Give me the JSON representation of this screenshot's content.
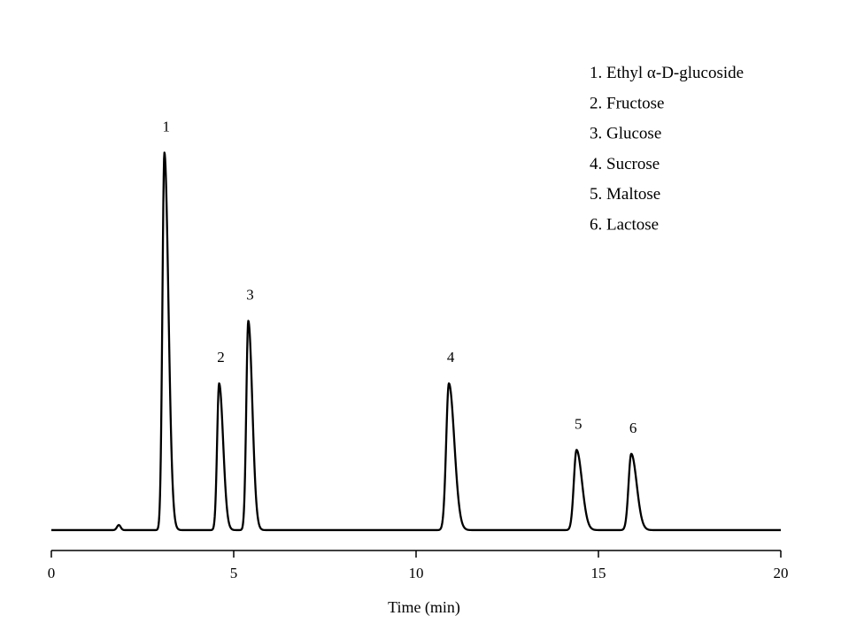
{
  "chart_data": {
    "type": "line",
    "title": "",
    "xlabel": "Time (min)",
    "ylabel": "",
    "xlim": [
      0,
      20
    ],
    "ylim": [
      0,
      1
    ],
    "x_ticks": [
      0,
      5,
      10,
      15,
      20
    ],
    "x_tick_labels": [
      "0",
      "5",
      "10",
      "15",
      "20"
    ],
    "grid": false,
    "legend_position": "top-right",
    "line_color": "#000000",
    "baseline": 0.025,
    "peaks": [
      {
        "label": "1",
        "retention_time": 3.1,
        "height": 0.99,
        "compound": "1. Ethyl α-D-glucoside"
      },
      {
        "label": "2",
        "retention_time": 4.6,
        "height": 0.4,
        "compound": "2. Fructose"
      },
      {
        "label": "3",
        "retention_time": 5.4,
        "height": 0.56,
        "compound": "3. Glucose"
      },
      {
        "label": "4",
        "retention_time": 10.9,
        "height": 0.4,
        "compound": "4. Sucrose"
      },
      {
        "label": "5",
        "retention_time": 14.4,
        "height": 0.23,
        "compound": "5. Maltose"
      },
      {
        "label": "6",
        "retention_time": 15.9,
        "height": 0.22,
        "compound": "6. Lactose"
      }
    ],
    "minor_peaks": [
      {
        "retention_time": 1.85,
        "height": 0.013
      }
    ],
    "legend": [
      "1. Ethyl α-D-glucoside",
      "2. Fructose",
      "3. Glucose",
      "4. Sucrose",
      "5. Maltose",
      "6. Lactose"
    ]
  }
}
